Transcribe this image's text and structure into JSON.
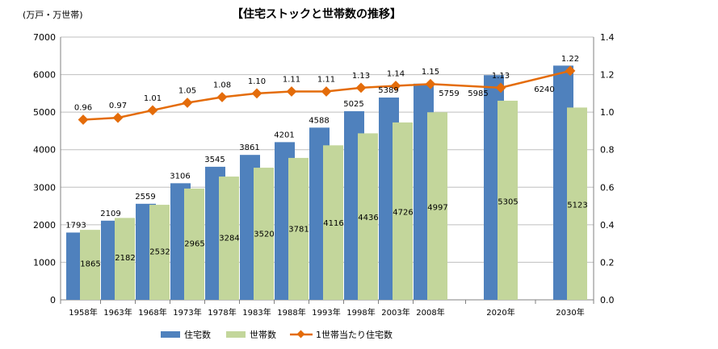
{
  "chart_data": {
    "type": "bar",
    "title": "【住宅ストックと世帯数の推移】",
    "ylabel": "(万戸・万世帯)",
    "y2label": "",
    "categories": [
      "1958年",
      "1963年",
      "1968年",
      "1973年",
      "1978年",
      "1983年",
      "1988年",
      "1993年",
      "1998年",
      "2003年",
      "2008年",
      "2020年",
      "2030年"
    ],
    "series": [
      {
        "name": "住宅数",
        "color": "#4f81bd",
        "values": [
          1793,
          2109,
          2559,
          3106,
          3545,
          3861,
          4201,
          4588,
          5025,
          5389,
          5759,
          5985,
          6240
        ]
      },
      {
        "name": "世帯数",
        "color": "#c3d69b",
        "values": [
          1865,
          2182,
          2532,
          2965,
          3284,
          3520,
          3781,
          4116,
          4436,
          4726,
          4997,
          5305,
          5123
        ]
      },
      {
        "name": "1世帯当たり住宅数",
        "color": "#e46c0a",
        "type": "line",
        "axis": "right",
        "values": [
          0.96,
          0.97,
          1.01,
          1.05,
          1.08,
          1.1,
          1.11,
          1.11,
          1.13,
          1.14,
          1.15,
          1.13,
          1.22
        ]
      }
    ],
    "ylim": [
      0,
      7000
    ],
    "y_ticks": [
      0,
      1000,
      2000,
      3000,
      4000,
      5000,
      6000,
      7000
    ],
    "y2lim": [
      0,
      1.4
    ],
    "y2_ticks": [
      "0.0",
      "0.2",
      "0.4",
      "0.6",
      "0.8",
      "1.0",
      "1.2",
      "1.4"
    ],
    "grid": true,
    "legend_position": "bottom"
  }
}
